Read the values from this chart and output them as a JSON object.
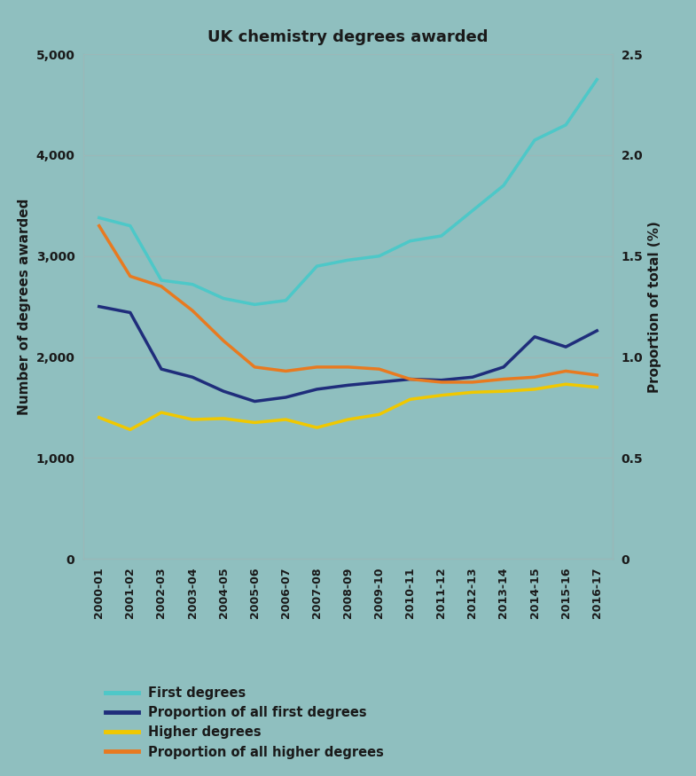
{
  "title": "UK chemistry degrees awarded",
  "years": [
    "2000-01",
    "2001-02",
    "2002-03",
    "2003-04",
    "2004-05",
    "2005-06",
    "2006-07",
    "2007-08",
    "2008-09",
    "2009-10",
    "2010-11",
    "2011-12",
    "2012-13",
    "2013-14",
    "2014-15",
    "2015-16",
    "2016-17"
  ],
  "first_degrees": [
    3380,
    3300,
    2760,
    2720,
    2580,
    2520,
    2560,
    2900,
    2960,
    3000,
    3150,
    3200,
    3450,
    3700,
    4150,
    4300,
    4750
  ],
  "higher_degrees": [
    1400,
    1280,
    1450,
    1380,
    1390,
    1350,
    1380,
    1300,
    1380,
    1430,
    1580,
    1620,
    1650,
    1660,
    1680,
    1730,
    1700
  ],
  "prop_first_pct": [
    1.25,
    1.22,
    0.94,
    0.9,
    0.83,
    0.78,
    0.8,
    0.84,
    0.86,
    0.875,
    0.89,
    0.885,
    0.9,
    0.95,
    1.1,
    1.05,
    1.13
  ],
  "prop_higher_pct": [
    1.65,
    1.4,
    1.35,
    1.23,
    1.08,
    0.95,
    0.93,
    0.95,
    0.95,
    0.94,
    0.89,
    0.875,
    0.875,
    0.89,
    0.9,
    0.93,
    0.91
  ],
  "first_degrees_color": "#4DC8C8",
  "prop_first_color": "#1F2D7B",
  "higher_degrees_color": "#F0C800",
  "prop_higher_color": "#E87A20",
  "background_color": "#8FBFBF",
  "ylim_left": [
    0,
    5000
  ],
  "ylim_right": [
    0,
    2.5
  ],
  "yticks_left": [
    0,
    1000,
    2000,
    3000,
    4000,
    5000
  ],
  "yticks_right": [
    0,
    0.5,
    1.0,
    1.5,
    2.0,
    2.5
  ],
  "ylabel_left": "Number of degrees awarded",
  "ylabel_right": "Proportion of total (%)",
  "legend_labels": [
    "First degrees",
    "Proportion of all first degrees",
    "Higher degrees",
    "Proportion of all higher degrees"
  ],
  "line_width": 2.5
}
